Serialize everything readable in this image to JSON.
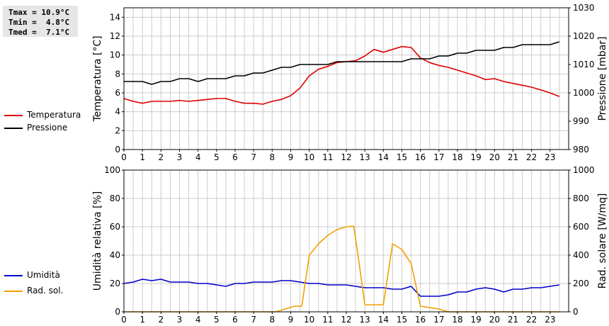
{
  "stats": {
    "tmax": "Tmax = 10.9°C",
    "tmin": "Tmin =  4.8°C",
    "tmed": "Tmed =  7.1°C"
  },
  "legend": {
    "temperatura": "Temperatura",
    "pressione": "Pressione",
    "umidita": "Umidità",
    "rad_sol": "Rad. sol."
  },
  "colors": {
    "temperatura": "#dd0000",
    "pressione": "#000000",
    "umidita": "#0000cc",
    "rad_sol": "#f0a000",
    "grid": "#cccccc"
  },
  "chart_data": [
    {
      "type": "line",
      "x_ticks": [
        0,
        1,
        2,
        3,
        4,
        5,
        6,
        7,
        8,
        9,
        10,
        11,
        12,
        13,
        14,
        15,
        16,
        17,
        18,
        19,
        20,
        21,
        22,
        23
      ],
      "xlim": [
        0,
        24
      ],
      "ylabel_left": "Temperatura [°C]",
      "ylim_left": [
        0,
        15
      ],
      "yticks_left": [
        0,
        2,
        4,
        6,
        8,
        10,
        12,
        14
      ],
      "ylabel_right": "Pressione [mbar]",
      "ylim_right": [
        980,
        1030
      ],
      "yticks_right": [
        980,
        990,
        1000,
        1010,
        1020,
        1030
      ],
      "grid": true,
      "series": [
        {
          "name": "Temperatura",
          "axis": "left",
          "x": [
            0,
            0.5,
            1,
            1.5,
            2,
            2.5,
            3,
            3.5,
            4,
            4.5,
            5,
            5.5,
            6,
            6.5,
            7,
            7.5,
            8,
            8.5,
            9,
            9.5,
            10,
            10.5,
            11,
            11.5,
            12,
            12.5,
            13,
            13.5,
            14,
            14.5,
            15,
            15.5,
            16,
            16.5,
            17,
            17.5,
            18,
            18.5,
            19,
            19.5,
            20,
            20.5,
            21,
            21.5,
            22,
            22.5,
            23,
            23.5
          ],
          "y": [
            5.4,
            5.1,
            4.9,
            5.1,
            5.1,
            5.1,
            5.2,
            5.1,
            5.2,
            5.3,
            5.4,
            5.4,
            5.1,
            4.9,
            4.9,
            4.8,
            5.1,
            5.3,
            5.7,
            6.5,
            7.8,
            8.5,
            8.8,
            9.2,
            9.3,
            9.4,
            9.9,
            10.6,
            10.3,
            10.6,
            10.9,
            10.8,
            9.7,
            9.2,
            8.9,
            8.7,
            8.4,
            8.1,
            7.8,
            7.4,
            7.5,
            7.2,
            7.0,
            6.8,
            6.6,
            6.3,
            6.0,
            5.6
          ]
        },
        {
          "name": "Pressione",
          "axis": "right",
          "x": [
            0,
            0.5,
            1,
            1.5,
            2,
            2.5,
            3,
            3.5,
            4,
            4.5,
            5,
            5.5,
            6,
            6.5,
            7,
            7.5,
            8,
            8.5,
            9,
            9.5,
            10,
            10.5,
            11,
            11.5,
            12,
            12.5,
            13,
            13.5,
            14,
            14.5,
            15,
            15.5,
            16,
            16.5,
            17,
            17.5,
            18,
            18.5,
            19,
            19.5,
            20,
            20.5,
            21,
            21.5,
            22,
            22.5,
            23,
            23.5
          ],
          "y": [
            1004,
            1004,
            1004,
            1003,
            1004,
            1004,
            1005,
            1005,
            1004,
            1005,
            1005,
            1005,
            1006,
            1006,
            1007,
            1007,
            1008,
            1009,
            1009,
            1010,
            1010,
            1010,
            1010,
            1011,
            1011,
            1011,
            1011,
            1011,
            1011,
            1011,
            1011,
            1012,
            1012,
            1012,
            1013,
            1013,
            1014,
            1014,
            1015,
            1015,
            1015,
            1016,
            1016,
            1017,
            1017,
            1017,
            1017,
            1018
          ]
        }
      ]
    },
    {
      "type": "line",
      "x_ticks": [
        0,
        1,
        2,
        3,
        4,
        5,
        6,
        7,
        8,
        9,
        10,
        11,
        12,
        13,
        14,
        15,
        16,
        17,
        18,
        19,
        20,
        21,
        22,
        23
      ],
      "xlim": [
        0,
        24
      ],
      "ylabel_left": "Umidità relativa [%]",
      "ylim_left": [
        0,
        100
      ],
      "yticks_left": [
        0,
        20,
        40,
        60,
        80,
        100
      ],
      "ylabel_right": "Rad. solare [W/mq]",
      "ylim_right": [
        0,
        1000
      ],
      "yticks_right": [
        0,
        200,
        400,
        600,
        800,
        1000
      ],
      "grid": true,
      "series": [
        {
          "name": "Umidità",
          "axis": "left",
          "x": [
            0,
            0.5,
            1,
            1.5,
            2,
            2.5,
            3,
            3.5,
            4,
            4.5,
            5,
            5.5,
            6,
            6.5,
            7,
            7.5,
            8,
            8.5,
            9,
            9.5,
            10,
            10.5,
            11,
            11.5,
            12,
            12.5,
            13,
            13.5,
            14,
            14.5,
            15,
            15.5,
            16,
            16.5,
            17,
            17.5,
            18,
            18.5,
            19,
            19.5,
            20,
            20.5,
            21,
            21.5,
            22,
            22.5,
            23,
            23.5
          ],
          "y": [
            20,
            21,
            23,
            22,
            23,
            21,
            21,
            21,
            20,
            20,
            19,
            18,
            20,
            20,
            21,
            21,
            21,
            22,
            22,
            21,
            20,
            20,
            19,
            19,
            19,
            18,
            17,
            17,
            17,
            16,
            16,
            18,
            11,
            11,
            11,
            12,
            14,
            14,
            16,
            17,
            16,
            14,
            16,
            16,
            17,
            17,
            18,
            19
          ]
        },
        {
          "name": "Rad. sol.",
          "axis": "right",
          "x": [
            0,
            1,
            2,
            3,
            4,
            5,
            6,
            7,
            8,
            8.2,
            8.7,
            9.2,
            9.6,
            10,
            10.5,
            11,
            11.5,
            12,
            12.4,
            12.6,
            13,
            13.5,
            14,
            14.5,
            15,
            15.5,
            16,
            16.5,
            17,
            17.5,
            18,
            19,
            20,
            21,
            22,
            23,
            23.5
          ],
          "y": [
            0,
            0,
            0,
            0,
            0,
            0,
            0,
            0,
            0,
            0,
            20,
            40,
            40,
            400,
            480,
            540,
            580,
            600,
            605,
            430,
            50,
            50,
            50,
            480,
            440,
            340,
            40,
            30,
            20,
            0,
            0,
            0,
            0,
            0,
            0,
            0,
            0
          ]
        }
      ]
    }
  ]
}
